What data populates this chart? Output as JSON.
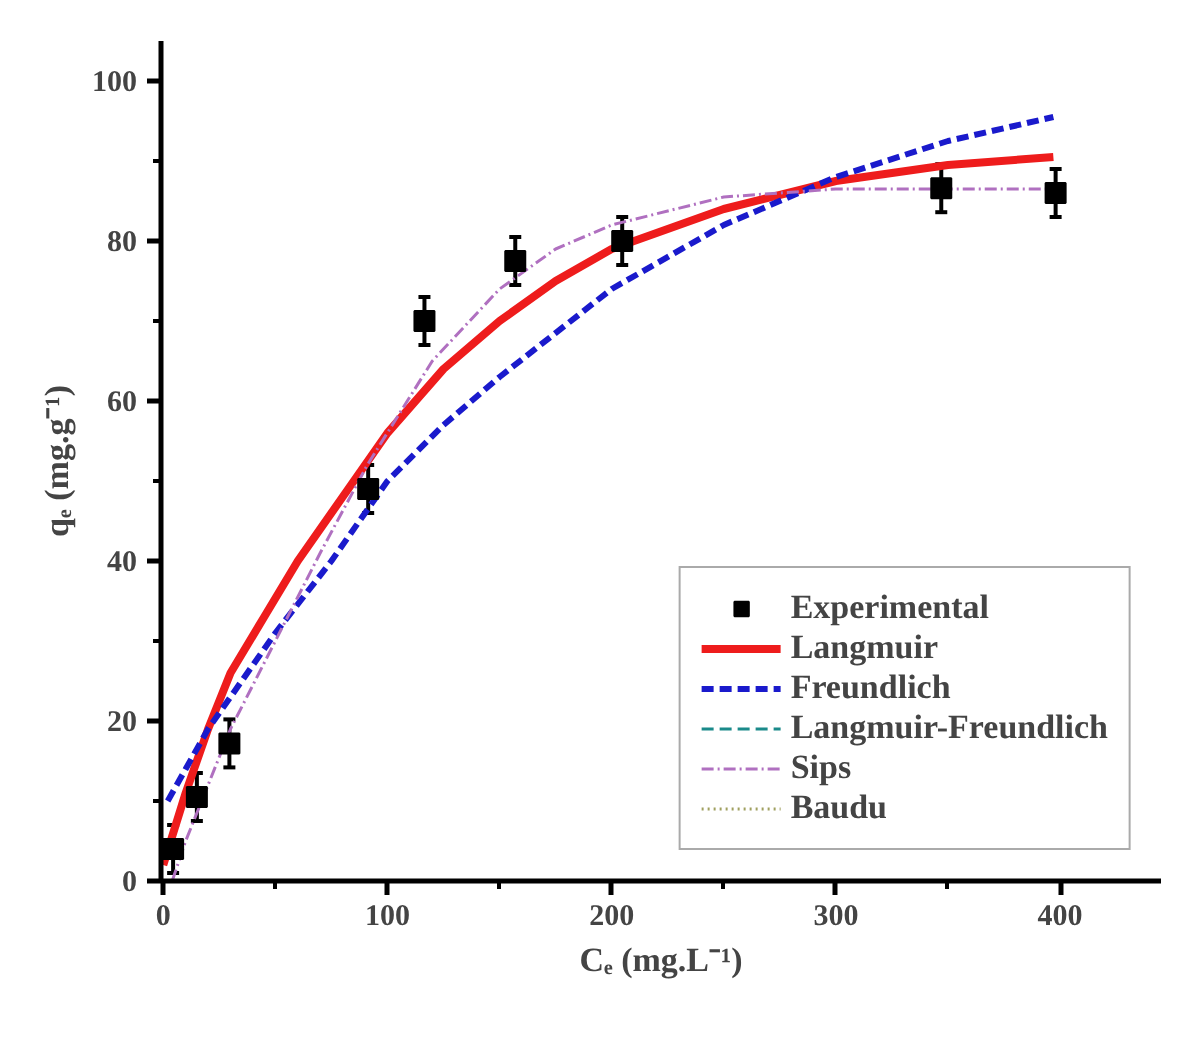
{
  "chart_data": {
    "type": "line",
    "xlabel": "Cₑ (mg.L⁻¹)",
    "ylabel": "qₑ (mg.g⁻¹)",
    "xlim": [
      -1,
      445
    ],
    "ylim": [
      0,
      105
    ],
    "xticks": [
      0,
      100,
      200,
      300,
      400
    ],
    "yticks": [
      0,
      20,
      40,
      60,
      80,
      100
    ],
    "grid": false,
    "legend": "bottom right",
    "series": [
      {
        "name": "Experimental",
        "type": "scatter",
        "marker": "square",
        "color": "#000000",
        "x": [
          4.4,
          15,
          29.5,
          91.4,
          116.5,
          157,
          204.7,
          347,
          398
        ],
        "values": [
          4,
          10.5,
          17.2,
          49,
          70,
          77.5,
          80,
          86.6,
          86
        ],
        "errors": [
          3,
          3,
          3,
          3,
          3,
          3,
          3,
          3,
          3
        ]
      },
      {
        "name": "Langmuir",
        "line_style": "solid",
        "color": "#ee1c1c",
        "x": [
          0,
          10,
          20,
          30,
          45,
          60,
          80,
          100,
          125,
          150,
          175,
          200,
          250,
          300,
          350,
          397
        ],
        "values": [
          2,
          11,
          19,
          26,
          33,
          40,
          48,
          56,
          64,
          70,
          75,
          79,
          84,
          87.5,
          89.5,
          90.5
        ]
      },
      {
        "name": "Freundlich",
        "line_style": "dashed",
        "color": "#1a1acc",
        "x": [
          2,
          10,
          20,
          30,
          50,
          75,
          100,
          125,
          150,
          200,
          250,
          300,
          350,
          397
        ],
        "values": [
          10,
          14,
          19,
          23,
          31,
          40,
          50,
          57,
          63,
          74,
          82,
          88,
          92.5,
          95.5
        ]
      },
      {
        "name": "Langmuir-Freundlich",
        "line_style": "dashed",
        "color": "#1a8a8a"
      },
      {
        "name": "Sips",
        "line_style": "dashdot",
        "color": "#b070c0",
        "x": [
          4,
          10,
          20,
          30,
          50,
          70,
          91,
          120,
          150,
          175,
          200,
          250,
          300,
          350,
          397
        ],
        "values": [
          0,
          5,
          12,
          19,
          30,
          41,
          52,
          65,
          74,
          79,
          82,
          85.5,
          86.5,
          86.5,
          86.5
        ]
      },
      {
        "name": "Baudu",
        "line_style": "dotted",
        "color": "#a0a060"
      }
    ]
  }
}
